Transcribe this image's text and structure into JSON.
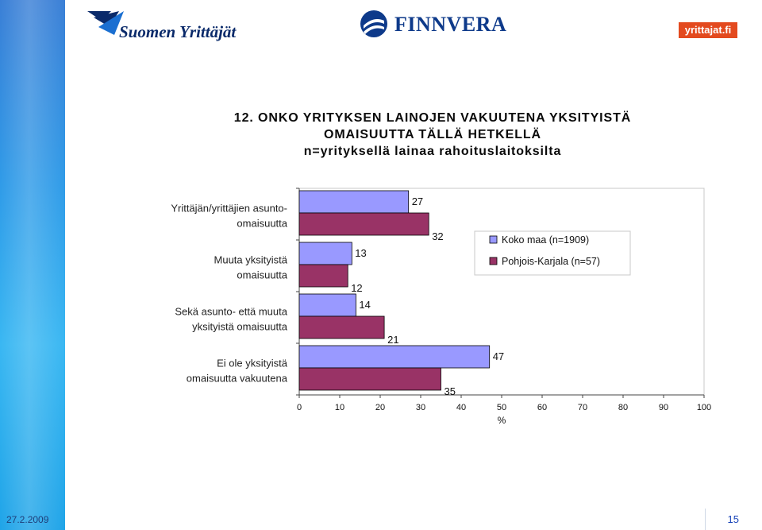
{
  "header": {
    "logo_left": "Suomen Yrittäjät",
    "logo_center": "FINNVERA",
    "logo_right": "yrittajat.fi"
  },
  "title": {
    "line1": "12. ONKO YRITYKSEN LAINOJEN VAKUUTENA YKSITYISTÄ",
    "line2": "OMAISUUTTA TÄLLÄ HETKELLÄ",
    "line3": "n=yrityksellä lainaa rahoituslaitoksilta"
  },
  "footer": {
    "date": "27.2.2009",
    "page": "15"
  },
  "colors": {
    "series1": "#9999ff",
    "series2": "#993366",
    "sidebar": "#2f9be8"
  },
  "chart_data": {
    "type": "bar",
    "orientation": "horizontal",
    "categories": [
      [
        "Yrittäjän/yrittäjien asunto-",
        "omaisuutta"
      ],
      [
        "Muuta yksityistä",
        "omaisuutta"
      ],
      [
        "Sekä asunto- että muuta",
        "yksityistä omaisuutta"
      ],
      [
        "Ei ole yksityistä",
        "omaisuutta vakuutena"
      ]
    ],
    "series": [
      {
        "name": "Koko maa (n=1909)",
        "values": [
          27,
          13,
          14,
          47
        ]
      },
      {
        "name": "Pohjois-Karjala (n=57)",
        "values": [
          32,
          12,
          21,
          35
        ]
      }
    ],
    "xlim": [
      0,
      100
    ],
    "xticks": [
      "0",
      "10",
      "20",
      "30",
      "40",
      "50",
      "60",
      "70",
      "80",
      "90",
      "100"
    ],
    "xlabel": "%",
    "legend": "right",
    "grid": false
  }
}
